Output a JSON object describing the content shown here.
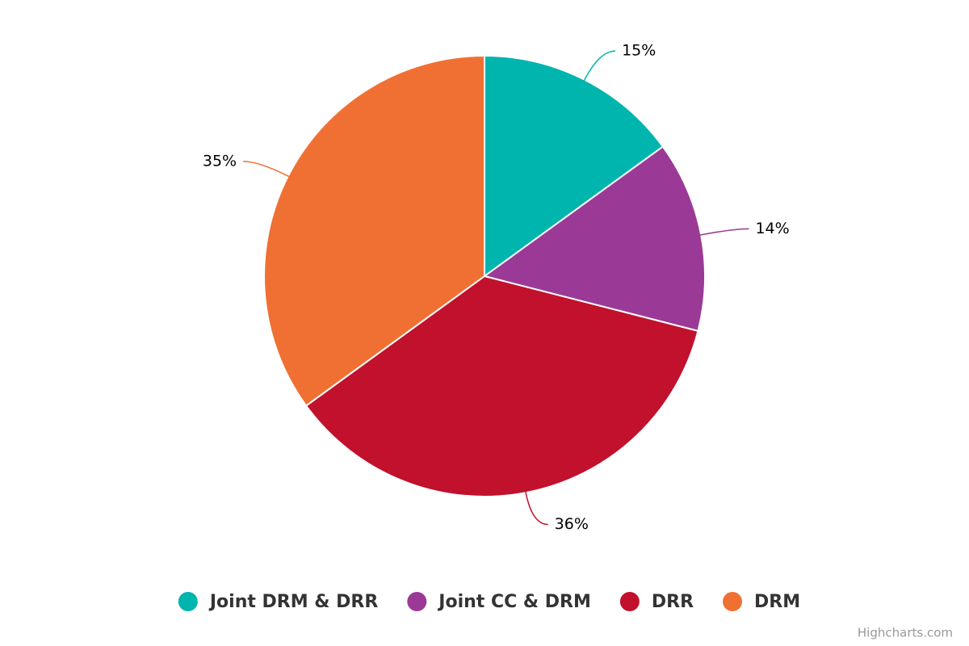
{
  "chart_data": {
    "type": "pie",
    "categories": [
      "Joint DRM & DRR",
      "Joint CC & DRM",
      "DRR",
      "DRM"
    ],
    "values": [
      15,
      14,
      36,
      35
    ],
    "value_labels": [
      "15%",
      "14%",
      "36%",
      "35%"
    ],
    "colors": [
      "#00b5ad",
      "#9b3a96",
      "#c1112d",
      "#f07033"
    ],
    "legend": "bottom",
    "credits": "Highcharts.com"
  }
}
